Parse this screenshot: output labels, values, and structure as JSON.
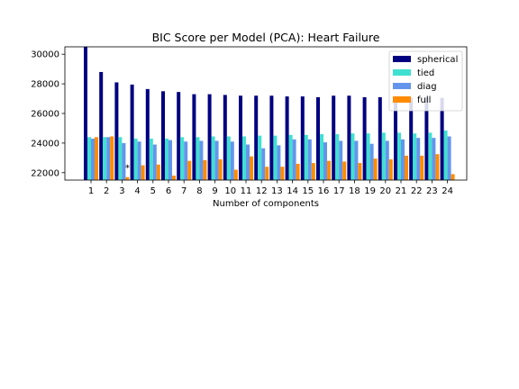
{
  "chart_data": {
    "type": "bar",
    "title": "BIC Score per Model (PCA): Heart Failure",
    "xlabel": "Number of components",
    "ylabel": "",
    "categories": [
      "1",
      "2",
      "3",
      "4",
      "5",
      "6",
      "7",
      "8",
      "9",
      "10",
      "11",
      "12",
      "13",
      "14",
      "15",
      "16",
      "17",
      "18",
      "19",
      "20",
      "21",
      "22",
      "23",
      "24"
    ],
    "ylim": [
      21500,
      30500
    ],
    "yticks": [
      22000,
      24000,
      26000,
      28000,
      30000
    ],
    "yticklabels": [
      "22000",
      "24000",
      "26000",
      "28000",
      "30000"
    ],
    "legend_position": "top-right",
    "grid": false,
    "series": [
      {
        "name": "spherical",
        "color": "#000080",
        "values": [
          30500,
          28800,
          28100,
          27950,
          27650,
          27500,
          27450,
          27300,
          27300,
          27250,
          27200,
          27200,
          27200,
          27150,
          27150,
          27100,
          27200,
          27200,
          27100,
          27100,
          27100,
          27050,
          27100,
          27050
        ]
      },
      {
        "name": "tied",
        "color": "#40e0d0",
        "values": [
          24400,
          24400,
          24400,
          24300,
          24300,
          24300,
          24400,
          24400,
          24450,
          24450,
          24450,
          24500,
          24500,
          24550,
          24550,
          24600,
          24600,
          24650,
          24650,
          24700,
          24700,
          24650,
          24700,
          24850
        ]
      },
      {
        "name": "diag",
        "color": "#6495ed",
        "values": [
          24300,
          24400,
          24000,
          24100,
          23900,
          24200,
          24100,
          24150,
          24150,
          24100,
          23900,
          23650,
          23850,
          24250,
          24250,
          24050,
          24150,
          24150,
          23950,
          24150,
          24250,
          24350,
          24350,
          24450
        ]
      },
      {
        "name": "full",
        "color": "#ff8c00",
        "values": [
          24400,
          24450,
          21700,
          22500,
          22550,
          21800,
          22800,
          22850,
          22900,
          22200,
          23100,
          22400,
          22400,
          22600,
          22650,
          22800,
          22750,
          22650,
          22950,
          22900,
          23150,
          23150,
          23250,
          21900
        ]
      }
    ],
    "best_marker": {
      "symbol": "*",
      "category": "3"
    }
  }
}
